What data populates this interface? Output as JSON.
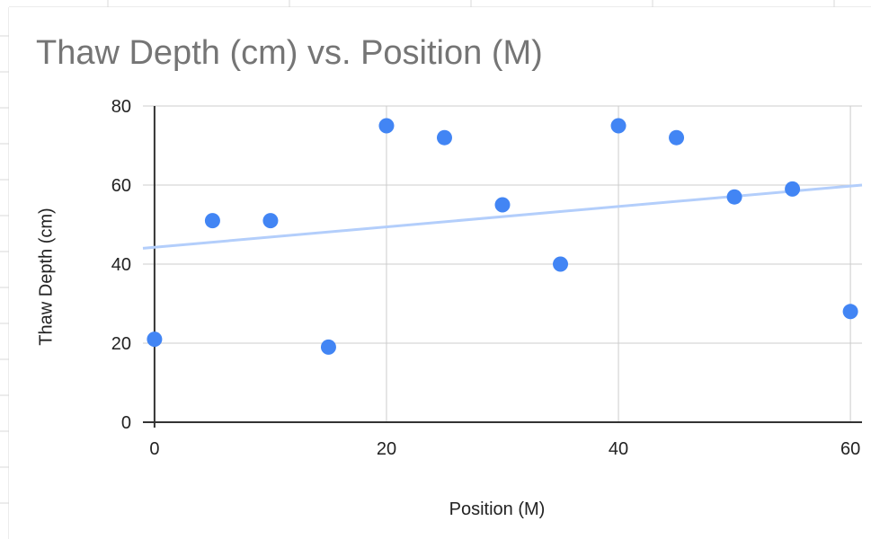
{
  "chart_data": {
    "type": "scatter",
    "title": "Thaw Depth (cm) vs. Position (M)",
    "xlabel": "Position (M)",
    "ylabel": "Thaw Depth (cm)",
    "xlim": [
      -1,
      61
    ],
    "ylim": [
      0,
      80
    ],
    "x_ticks": [
      0,
      20,
      40,
      60
    ],
    "y_ticks": [
      0,
      20,
      40,
      60,
      80
    ],
    "x_tick_labels": [
      "0",
      "20",
      "40",
      "60"
    ],
    "y_tick_labels": [
      "0",
      "20",
      "40",
      "60",
      "80"
    ],
    "grid": true,
    "series": [
      {
        "color": "#4285f4",
        "points": [
          {
            "x": 0,
            "y": 21
          },
          {
            "x": 5,
            "y": 51
          },
          {
            "x": 10,
            "y": 51
          },
          {
            "x": 15,
            "y": 19
          },
          {
            "x": 20,
            "y": 75
          },
          {
            "x": 25,
            "y": 72
          },
          {
            "x": 30,
            "y": 55
          },
          {
            "x": 35,
            "y": 40
          },
          {
            "x": 40,
            "y": 75
          },
          {
            "x": 45,
            "y": 72
          },
          {
            "x": 50,
            "y": 57
          },
          {
            "x": 55,
            "y": 59
          },
          {
            "x": 60,
            "y": 28
          }
        ]
      }
    ],
    "trendline": {
      "type": "linear",
      "color": "#b3cefb",
      "x_start": -1,
      "y_start": 44,
      "x_end": 61,
      "y_end": 60
    }
  }
}
